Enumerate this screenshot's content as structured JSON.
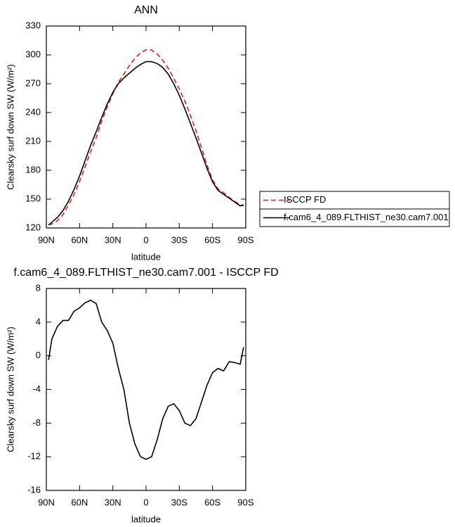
{
  "chart_data": [
    {
      "type": "line",
      "title": "ANN",
      "xlabel": "latitude",
      "ylabel": "Clearsky surf down SW (W/m²)",
      "x": [
        88,
        85,
        80,
        75,
        70,
        65,
        60,
        55,
        50,
        45,
        40,
        35,
        30,
        25,
        20,
        15,
        10,
        5,
        0,
        -5,
        -10,
        -15,
        -20,
        -25,
        -30,
        -35,
        -40,
        -45,
        -50,
        -55,
        -60,
        -65,
        -70,
        -75,
        -80,
        -85,
        -88
      ],
      "xlim": [
        90,
        -90
      ],
      "xticks": [
        {
          "value": 90,
          "label": "90N"
        },
        {
          "value": 60,
          "label": "60N"
        },
        {
          "value": 30,
          "label": "30N"
        },
        0,
        {
          "value": -30,
          "label": "30S"
        },
        {
          "value": -60,
          "label": "60S"
        },
        {
          "value": -90,
          "label": "90S"
        }
      ],
      "ylim": [
        120,
        330
      ],
      "yticks": [
        120,
        150,
        180,
        210,
        240,
        270,
        300,
        330
      ],
      "legend": "right",
      "series": [
        {
          "name": "ISCCP FD",
          "color": "#e41a1c",
          "dash": "dashed",
          "values": [
            123.5,
            124,
            127.5,
            133.8,
            143.8,
            154.7,
            168.3,
            183.7,
            199.4,
            213.8,
            231,
            246,
            259.5,
            271.5,
            280,
            289,
            296.5,
            302,
            305.3,
            305,
            301,
            294.5,
            286,
            275.7,
            264.5,
            252,
            237.3,
            221.5,
            203.5,
            185.5,
            170,
            160.5,
            156.8,
            151.7,
            147.8,
            144,
            143
          ]
        },
        {
          "name": "f.cam6_4_089.FLTHIST_ne30.cam7.001",
          "color": "#000000",
          "dash": "solid",
          "values": [
            123,
            126,
            131,
            138,
            148,
            160,
            174,
            190,
            206,
            220,
            235,
            249,
            261,
            270,
            276,
            281,
            286,
            290,
            293,
            293,
            291,
            287,
            280,
            270,
            258,
            244,
            229,
            214,
            198,
            182,
            168,
            159,
            155,
            151,
            147,
            143,
            144
          ]
        }
      ]
    },
    {
      "type": "line",
      "title": "f.cam6_4_089.FLTHIST_ne30.cam7.001 - ISCCP FD",
      "xlabel": "latitude",
      "ylabel": "Clearsky surf down SW (W/m²)",
      "x": [
        88,
        85,
        80,
        75,
        70,
        65,
        60,
        55,
        50,
        45,
        40,
        35,
        30,
        25,
        20,
        15,
        10,
        5,
        0,
        -5,
        -10,
        -15,
        -20,
        -25,
        -30,
        -35,
        -40,
        -45,
        -50,
        -55,
        -60,
        -65,
        -70,
        -75,
        -80,
        -85,
        -88
      ],
      "xlim": [
        90,
        -90
      ],
      "xticks": [
        {
          "value": 90,
          "label": "90N"
        },
        {
          "value": 60,
          "label": "60N"
        },
        {
          "value": 30,
          "label": "30N"
        },
        0,
        {
          "value": -30,
          "label": "30S"
        },
        {
          "value": -60,
          "label": "60S"
        },
        {
          "value": -90,
          "label": "90S"
        }
      ],
      "ylim": [
        -16,
        8
      ],
      "yticks": [
        -16,
        -12,
        -8,
        -4,
        0,
        4,
        8
      ],
      "series": [
        {
          "color": "#000000",
          "dash": "solid",
          "values": [
            -0.5,
            2,
            3.5,
            4.2,
            4.2,
            5.3,
            5.7,
            6.3,
            6.6,
            6.2,
            4,
            3,
            1.5,
            -1.5,
            -4,
            -8,
            -10.5,
            -12,
            -12.3,
            -12,
            -10,
            -7.5,
            -6,
            -5.7,
            -6.5,
            -8,
            -8.3,
            -7.5,
            -5.5,
            -3.5,
            -2,
            -1.5,
            -1.8,
            -0.7,
            -0.8,
            -1,
            1
          ]
        }
      ]
    }
  ]
}
